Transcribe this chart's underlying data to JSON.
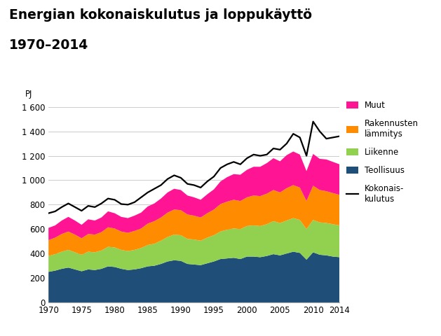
{
  "title_line1": "Energian kokonaiskulutus ja loppukäyttö",
  "title_line2": "1970–2014",
  "ylabel": "PJ",
  "years": [
    1970,
    1971,
    1972,
    1973,
    1974,
    1975,
    1976,
    1977,
    1978,
    1979,
    1980,
    1981,
    1982,
    1983,
    1984,
    1985,
    1986,
    1987,
    1988,
    1989,
    1990,
    1991,
    1992,
    1993,
    1994,
    1995,
    1996,
    1997,
    1998,
    1999,
    2000,
    2001,
    2002,
    2003,
    2004,
    2005,
    2006,
    2007,
    2008,
    2009,
    2010,
    2011,
    2012,
    2013,
    2014
  ],
  "teollisuus": [
    250,
    260,
    275,
    285,
    270,
    255,
    270,
    265,
    275,
    295,
    290,
    275,
    265,
    270,
    280,
    295,
    300,
    315,
    335,
    345,
    340,
    315,
    310,
    305,
    320,
    335,
    355,
    360,
    365,
    355,
    375,
    375,
    370,
    380,
    395,
    385,
    400,
    415,
    405,
    350,
    410,
    390,
    385,
    375,
    370
  ],
  "liikenne": [
    130,
    135,
    140,
    145,
    140,
    135,
    145,
    145,
    150,
    160,
    160,
    155,
    155,
    160,
    165,
    175,
    180,
    190,
    200,
    210,
    210,
    205,
    205,
    200,
    210,
    215,
    225,
    235,
    240,
    245,
    250,
    255,
    255,
    260,
    270,
    265,
    270,
    275,
    270,
    250,
    265,
    265,
    265,
    265,
    260
  ],
  "rakennusten": [
    130,
    135,
    145,
    150,
    145,
    135,
    145,
    145,
    150,
    160,
    155,
    150,
    150,
    155,
    160,
    175,
    185,
    190,
    200,
    205,
    205,
    200,
    195,
    190,
    200,
    210,
    225,
    230,
    235,
    230,
    235,
    245,
    245,
    250,
    255,
    250,
    265,
    270,
    265,
    230,
    280,
    265,
    260,
    255,
    250
  ],
  "muut": [
    100,
    100,
    110,
    120,
    115,
    110,
    120,
    115,
    120,
    130,
    125,
    120,
    120,
    125,
    130,
    140,
    145,
    155,
    165,
    170,
    165,
    155,
    150,
    145,
    155,
    165,
    185,
    200,
    210,
    215,
    225,
    235,
    240,
    250,
    260,
    255,
    270,
    275,
    270,
    245,
    260,
    255,
    260,
    255,
    250
  ],
  "kokonaiskulutus": [
    730,
    745,
    780,
    810,
    780,
    750,
    790,
    780,
    810,
    850,
    840,
    805,
    800,
    820,
    860,
    900,
    930,
    960,
    1010,
    1040,
    1020,
    970,
    960,
    940,
    990,
    1030,
    1100,
    1130,
    1150,
    1130,
    1180,
    1210,
    1200,
    1210,
    1260,
    1250,
    1300,
    1380,
    1350,
    1200,
    1480,
    1400,
    1340,
    1350,
    1360
  ],
  "color_teollisuus": "#1f4e79",
  "color_liikenne": "#92d050",
  "color_rakennusten": "#ff8c00",
  "color_muut": "#ff1493",
  "color_kokonaiskulutus": "#000000",
  "background_color": "#ffffff",
  "ylim": [
    0,
    1650
  ],
  "yticks": [
    0,
    200,
    400,
    600,
    800,
    1000,
    1200,
    1400,
    1600
  ],
  "ytick_labels": [
    "0",
    "200",
    "400",
    "600",
    "800",
    "1 000",
    "1 200",
    "1 400",
    "1 600"
  ],
  "xticks": [
    1970,
    1975,
    1980,
    1985,
    1990,
    1995,
    2000,
    2005,
    2010,
    2014
  ],
  "legend_labels": [
    "Muut",
    "Rakennusten\nlämmitys",
    "Liikenne",
    "Teollisuus",
    "Kokonais-\nkulutus"
  ],
  "legend_colors": [
    "#ff1493",
    "#ff8c00",
    "#92d050",
    "#1f4e79",
    "#000000"
  ]
}
